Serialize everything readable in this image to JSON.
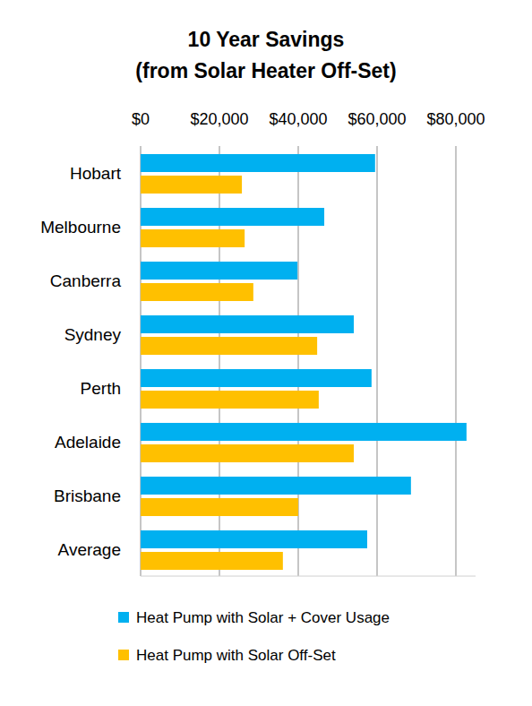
{
  "chart_data": {
    "type": "bar",
    "orientation": "horizontal",
    "title": "10 Year Savings",
    "subtitle": "(from Solar Heater Off-Set)",
    "categories": [
      "Hobart",
      "Melbourne",
      "Canberra",
      "Sydney",
      "Perth",
      "Adelaide",
      "Brisbane",
      "Average"
    ],
    "series": [
      {
        "name": "Heat Pump with Solar + Cover Usage",
        "color": "#00b0f0",
        "values": [
          59500,
          46600,
          39800,
          54100,
          58600,
          82700,
          68600,
          57500
        ]
      },
      {
        "name": "Heat Pump with Solar Off-Set",
        "color": "#ffc000",
        "values": [
          25700,
          26400,
          28600,
          44800,
          45200,
          54100,
          40000,
          36100
        ]
      }
    ],
    "xlim": [
      0,
      85000
    ],
    "xticks": [
      {
        "value": 0,
        "label": "$0"
      },
      {
        "value": 20000,
        "label": "$20,000"
      },
      {
        "value": 40000,
        "label": "$40,000"
      },
      {
        "value": 60000,
        "label": "$60,000"
      },
      {
        "value": 80000,
        "label": "$80,000"
      }
    ],
    "grid": true,
    "legend": "bottom"
  }
}
